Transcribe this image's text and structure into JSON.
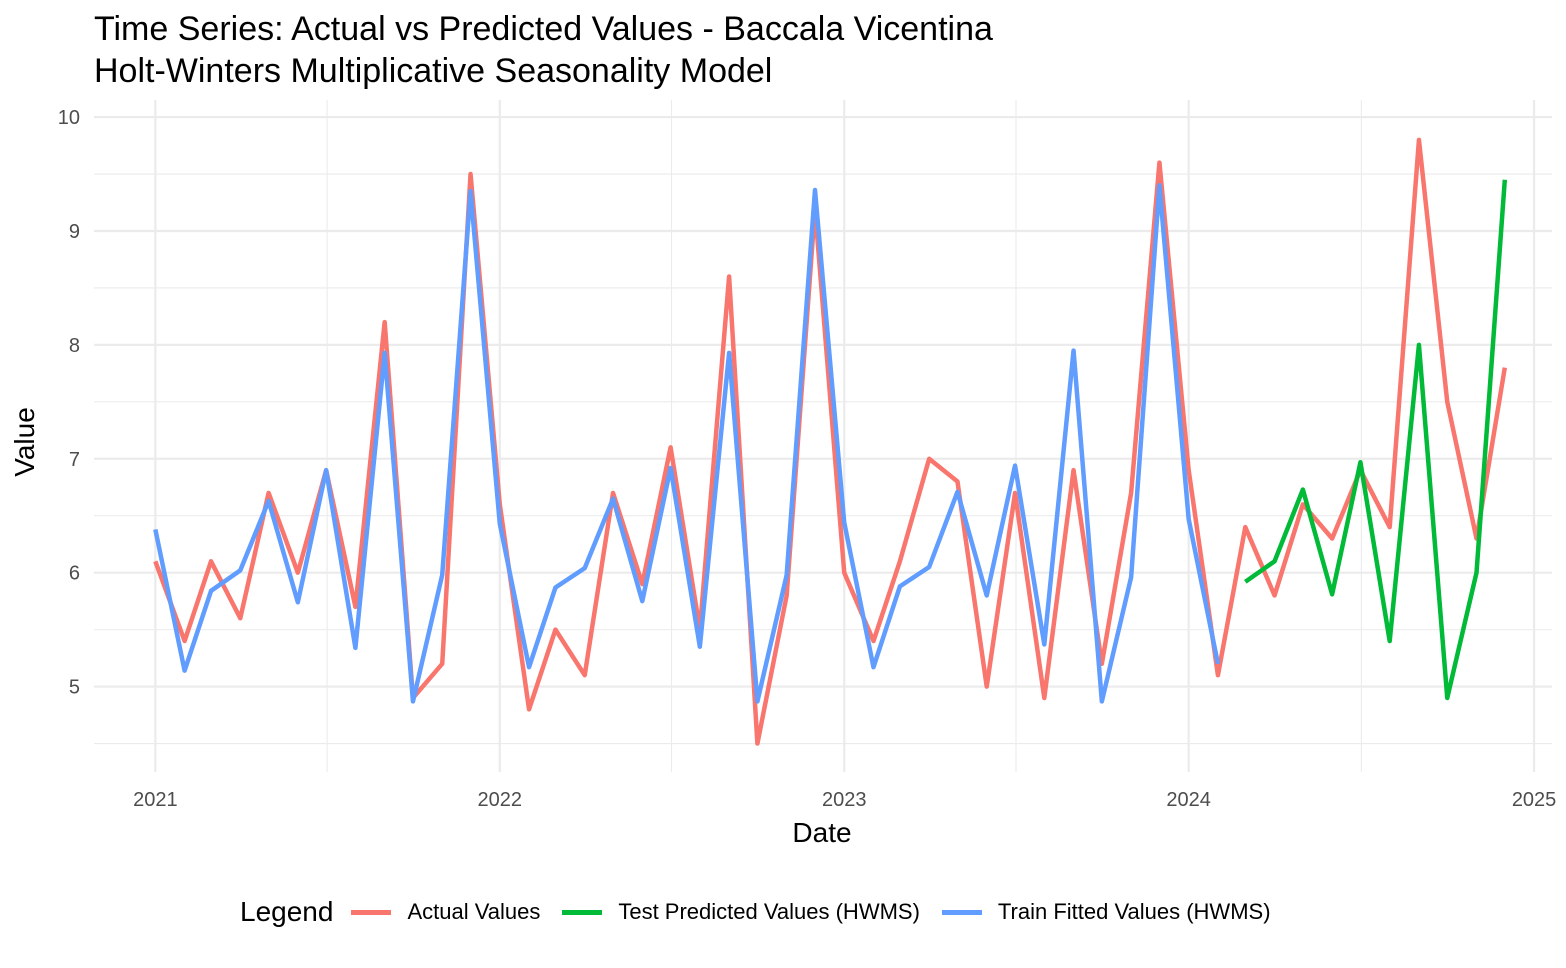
{
  "chart_data": {
    "type": "line",
    "title": "Time Series: Actual vs Predicted Values - Baccala Vicentina",
    "subtitle": "Holt-Winters Multiplicative Seasonality Model",
    "xlabel": "Date",
    "ylabel": "Value",
    "x_ticks": [
      "2021",
      "2022",
      "2023",
      "2024",
      "2025"
    ],
    "y_ticks": [
      5,
      6,
      7,
      8,
      9,
      10
    ],
    "xlim": [
      "2020-10-28",
      "2025-01-20"
    ],
    "ylim": [
      4.25,
      10.15
    ],
    "grid": true,
    "legend": {
      "title": "Legend",
      "position": "bottom",
      "items": [
        {
          "label": "Actual Values",
          "color": "#F8766D"
        },
        {
          "label": "Test Predicted Values (HWMS)",
          "color": "#00BA38"
        },
        {
          "label": "Train Fitted Values (HWMS)",
          "color": "#619CFF"
        }
      ]
    },
    "series": [
      {
        "name": "Actual Values",
        "color": "#F8766D",
        "x": [
          "2021-01",
          "2021-02",
          "2021-03",
          "2021-04",
          "2021-05",
          "2021-06",
          "2021-07",
          "2021-08",
          "2021-09",
          "2021-10",
          "2021-11",
          "2021-12",
          "2022-01",
          "2022-02",
          "2022-03",
          "2022-04",
          "2022-05",
          "2022-06",
          "2022-07",
          "2022-08",
          "2022-09",
          "2022-10",
          "2022-11",
          "2022-12",
          "2023-01",
          "2023-02",
          "2023-03",
          "2023-04",
          "2023-05",
          "2023-06",
          "2023-07",
          "2023-08",
          "2023-09",
          "2023-10",
          "2023-11",
          "2023-12",
          "2024-01",
          "2024-02",
          "2024-03",
          "2024-04",
          "2024-05",
          "2024-06",
          "2024-07",
          "2024-08",
          "2024-09",
          "2024-10",
          "2024-11",
          "2024-12"
        ],
        "values": [
          6.1,
          5.4,
          6.1,
          5.6,
          6.7,
          6.0,
          6.9,
          5.7,
          8.2,
          4.9,
          5.2,
          9.5,
          6.6,
          4.8,
          5.5,
          5.1,
          6.7,
          5.9,
          7.1,
          5.5,
          8.6,
          4.5,
          5.8,
          9.2,
          6.0,
          5.4,
          6.1,
          7.0,
          6.8,
          5.0,
          6.7,
          4.9,
          6.9,
          5.2,
          6.7,
          9.6,
          6.9,
          5.1,
          6.4,
          5.8,
          6.6,
          6.3,
          6.9,
          6.4,
          9.8,
          7.5,
          6.3,
          7.8
        ]
      },
      {
        "name": "Test Predicted Values (HWMS)",
        "color": "#00BA38",
        "x": [
          "2024-03",
          "2024-04",
          "2024-05",
          "2024-06",
          "2024-07",
          "2024-08",
          "2024-09",
          "2024-10",
          "2024-11",
          "2024-12"
        ],
        "values": [
          5.92,
          6.1,
          6.73,
          5.81,
          6.97,
          5.4,
          8.0,
          4.9,
          6.0,
          9.45
        ]
      },
      {
        "name": "Train Fitted Values (HWMS)",
        "color": "#619CFF",
        "x": [
          "2021-01",
          "2021-02",
          "2021-03",
          "2021-04",
          "2021-05",
          "2021-06",
          "2021-07",
          "2021-08",
          "2021-09",
          "2021-10",
          "2021-11",
          "2021-12",
          "2022-01",
          "2022-02",
          "2022-03",
          "2022-04",
          "2022-05",
          "2022-06",
          "2022-07",
          "2022-08",
          "2022-09",
          "2022-10",
          "2022-11",
          "2022-12",
          "2023-01",
          "2023-02",
          "2023-03",
          "2023-04",
          "2023-05",
          "2023-06",
          "2023-07",
          "2023-08",
          "2023-09",
          "2023-10",
          "2023-11",
          "2023-12",
          "2024-01",
          "2024-02"
        ],
        "values": [
          6.38,
          5.14,
          5.84,
          6.02,
          6.63,
          5.74,
          6.9,
          5.34,
          7.93,
          4.87,
          5.98,
          9.35,
          6.43,
          5.17,
          5.87,
          6.04,
          6.65,
          5.75,
          6.92,
          5.35,
          7.93,
          4.87,
          5.98,
          9.36,
          6.44,
          5.17,
          5.88,
          6.05,
          6.71,
          5.8,
          6.94,
          5.37,
          7.95,
          4.87,
          5.96,
          9.4,
          6.47,
          5.2
        ]
      }
    ]
  }
}
